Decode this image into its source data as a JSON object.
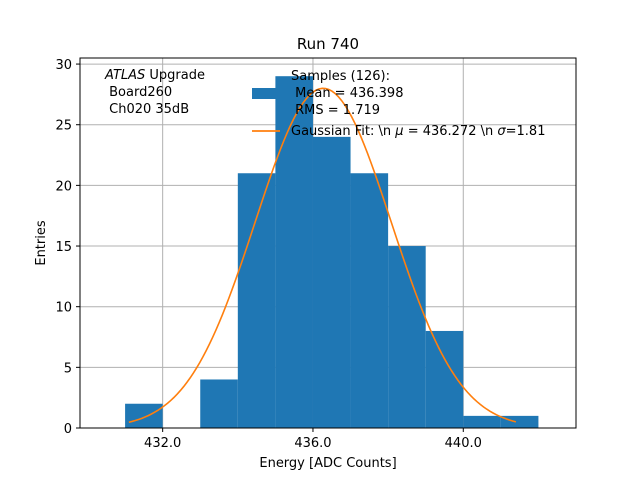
{
  "chart_data": {
    "type": "bar",
    "title": "Run 740",
    "xlabel": "Energy [ADC Counts]",
    "ylabel": "Entries",
    "xlim": [
      429.8,
      443.0
    ],
    "ylim": [
      0,
      30.5
    ],
    "grid": true,
    "x_ticks": [
      432.0,
      436.0,
      440.0
    ],
    "x_tick_labels": [
      "432.0",
      "436.0",
      "440.0"
    ],
    "y_ticks": [
      0,
      5,
      10,
      15,
      20,
      25,
      30
    ],
    "y_tick_labels": [
      "0",
      "5",
      "10",
      "15",
      "20",
      "25",
      "30"
    ],
    "bin_edges": [
      431,
      432,
      433,
      434,
      435,
      436,
      437,
      438,
      439,
      440,
      441,
      442
    ],
    "values": [
      2,
      0,
      4,
      21,
      29,
      24,
      21,
      15,
      8,
      1,
      1
    ],
    "fit_curve": {
      "name": "Gaussian Fit",
      "mu": 436.272,
      "sigma": 1.81,
      "amplitude": 28,
      "x_range": [
        431.1,
        441.4
      ]
    },
    "colors": {
      "bars": "#1f77b4",
      "fit": "#ff7f0e",
      "grid": "#b0b0b0"
    },
    "annotation": {
      "experiment": "ATLAS",
      "experiment_suffix": " Upgrade",
      "board": " Board260",
      "channel": " Ch020 35dB"
    },
    "legend": {
      "placement": "top-right",
      "samples_line1": "Samples (126):",
      "samples_line2": " Mean = 436.398",
      "samples_line3": " RMS = 1.719",
      "fit_prefix": "Gaussian Fit: \\n ",
      "mu_symbol": "μ",
      "mu_text": " = 436.272 \\n ",
      "sigma_symbol": "σ",
      "sigma_text": "=1.81"
    }
  }
}
